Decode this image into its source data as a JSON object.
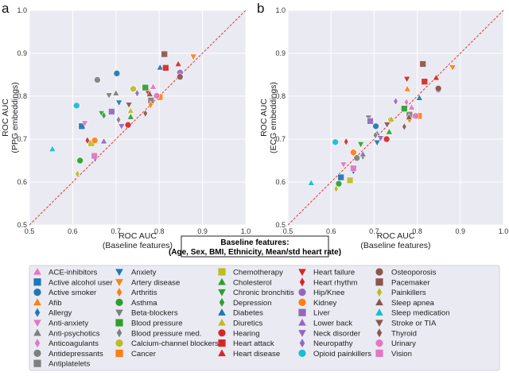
{
  "legend": [
    {
      "label": "ACE-inhibitors",
      "color": "#e377c2",
      "marker": "triangle-up"
    },
    {
      "label": "Active alcohol user",
      "color": "#1f77b4",
      "marker": "square"
    },
    {
      "label": "Active smoker",
      "color": "#1f77b4",
      "marker": "circle"
    },
    {
      "label": "Afib",
      "color": "#ff7f0e",
      "marker": "triangle-up"
    },
    {
      "label": "Allergy",
      "color": "#1f77b4",
      "marker": "diamond"
    },
    {
      "label": "Anti-anxiety",
      "color": "#e377c2",
      "marker": "triangle-down"
    },
    {
      "label": "Anti-psychotics",
      "color": "#7f7f7f",
      "marker": "triangle-up"
    },
    {
      "label": "Anticoagulants",
      "color": "#e377c2",
      "marker": "diamond"
    },
    {
      "label": "Antidepressants",
      "color": "#7f7f7f",
      "marker": "circle"
    },
    {
      "label": "Antiplatelets",
      "color": "#7f7f7f",
      "marker": "square"
    },
    {
      "label": "Anxiety",
      "color": "#1f77b4",
      "marker": "triangle-down"
    },
    {
      "label": "Artery disease",
      "color": "#ff7f0e",
      "marker": "triangle-down"
    },
    {
      "label": "Arthritis",
      "color": "#ff7f0e",
      "marker": "diamond"
    },
    {
      "label": "Asthma",
      "color": "#2ca02c",
      "marker": "circle"
    },
    {
      "label": "Beta-blockers",
      "color": "#7f7f7f",
      "marker": "triangle-down"
    },
    {
      "label": "Blood pressure",
      "color": "#2ca02c",
      "marker": "square"
    },
    {
      "label": "Blood pressure med.",
      "color": "#7f7f7f",
      "marker": "diamond"
    },
    {
      "label": "Calcium-channel blockers",
      "color": "#bcbd22",
      "marker": "circle"
    },
    {
      "label": "Cancer",
      "color": "#ff7f0e",
      "marker": "square"
    },
    {
      "label": "Chemotherapy",
      "color": "#bcbd22",
      "marker": "square"
    },
    {
      "label": "Cholesterol",
      "color": "#2ca02c",
      "marker": "triangle-up"
    },
    {
      "label": "Chronic bronchitis",
      "color": "#2ca02c",
      "marker": "triangle-down"
    },
    {
      "label": "Depression",
      "color": "#2ca02c",
      "marker": "diamond"
    },
    {
      "label": "Diabetes",
      "color": "#1f77b4",
      "marker": "triangle-up"
    },
    {
      "label": "Diuretics",
      "color": "#bcbd22",
      "marker": "triangle-up"
    },
    {
      "label": "Hearing",
      "color": "#d62728",
      "marker": "circle"
    },
    {
      "label": "Heart attack",
      "color": "#d62728",
      "marker": "square"
    },
    {
      "label": "Heart disease",
      "color": "#d62728",
      "marker": "triangle-up"
    },
    {
      "label": "Heart failure",
      "color": "#d62728",
      "marker": "triangle-down"
    },
    {
      "label": "Heart rhythm",
      "color": "#d62728",
      "marker": "diamond"
    },
    {
      "label": "Hip/Knee",
      "color": "#9467bd",
      "marker": "circle"
    },
    {
      "label": "Kidney",
      "color": "#ff7f0e",
      "marker": "circle"
    },
    {
      "label": "Liver",
      "color": "#9467bd",
      "marker": "square"
    },
    {
      "label": "Lower back",
      "color": "#9467bd",
      "marker": "triangle-up"
    },
    {
      "label": "Neck disorder",
      "color": "#9467bd",
      "marker": "triangle-down"
    },
    {
      "label": "Neuropathy",
      "color": "#9467bd",
      "marker": "diamond"
    },
    {
      "label": "Opioid painkillers",
      "color": "#17becf",
      "marker": "circle"
    },
    {
      "label": "Osteoporosis",
      "color": "#8c564b",
      "marker": "circle"
    },
    {
      "label": "Pacemaker",
      "color": "#8c564b",
      "marker": "square"
    },
    {
      "label": "Painkillers",
      "color": "#bcbd22",
      "marker": "diamond"
    },
    {
      "label": "Sleep apnea",
      "color": "#8c564b",
      "marker": "triangle-up"
    },
    {
      "label": "Sleep medication",
      "color": "#17becf",
      "marker": "triangle-up"
    },
    {
      "label": "Stroke or TIA",
      "color": "#8c564b",
      "marker": "triangle-down"
    },
    {
      "label": "Thyroid",
      "color": "#8c564b",
      "marker": "diamond"
    },
    {
      "label": "Urinary",
      "color": "#e377c2",
      "marker": "circle"
    },
    {
      "label": "Vision",
      "color": "#e377c2",
      "marker": "square"
    }
  ],
  "baseline_box": {
    "line1": "Baseline features:",
    "line2": "(Age, Sex, BMI, Ethnicity, Mean/std heart rate)"
  },
  "chart_data": [
    {
      "panel": "a",
      "type": "scatter",
      "xlabel": [
        "ROC AUC",
        "(Baseline features)"
      ],
      "ylabel": [
        "ROC AUC",
        "(PPG embeddings)"
      ],
      "xlim": [
        0.5,
        1.0
      ],
      "ylim": [
        0.5,
        1.0
      ],
      "xticks": [
        "0.5",
        "0.6",
        "0.7",
        "0.8",
        "0.9",
        "1.0"
      ],
      "yticks": [
        "0.5",
        "0.6",
        "0.7",
        "0.8",
        "0.9",
        "1.0"
      ],
      "grid": true,
      "diagonal": {
        "style": "dashed",
        "color": "#e8302a"
      },
      "points": [
        [
          0.786,
          0.822
        ],
        [
          0.621,
          0.73
        ],
        [
          0.702,
          0.853
        ],
        [
          0.781,
          0.785
        ],
        [
          0.652,
          0.655
        ],
        [
          0.628,
          0.737
        ],
        [
          0.7,
          0.807
        ],
        [
          0.775,
          0.812
        ],
        [
          0.657,
          0.838
        ],
        [
          0.781,
          0.79
        ],
        [
          0.707,
          0.785
        ],
        [
          0.879,
          0.892
        ],
        [
          0.78,
          0.78
        ],
        [
          0.617,
          0.65
        ],
        [
          0.684,
          0.802
        ],
        [
          0.768,
          0.82
        ],
        [
          0.706,
          0.745
        ],
        [
          0.74,
          0.817
        ],
        [
          0.801,
          0.798
        ],
        [
          0.643,
          0.69
        ],
        [
          0.734,
          0.752
        ],
        [
          0.667,
          0.76
        ],
        [
          0.672,
          0.755
        ],
        [
          0.802,
          0.867
        ],
        [
          0.734,
          0.766
        ],
        [
          0.728,
          0.733
        ],
        [
          0.815,
          0.866
        ],
        [
          0.844,
          0.875
        ],
        [
          0.775,
          0.807
        ],
        [
          0.634,
          0.697
        ],
        [
          0.848,
          0.855
        ],
        [
          0.651,
          0.697
        ],
        [
          0.69,
          0.764
        ],
        [
          0.672,
          0.695
        ],
        [
          0.713,
          0.73
        ],
        [
          0.749,
          0.807
        ],
        [
          0.609,
          0.778
        ],
        [
          0.848,
          0.845
        ],
        [
          0.812,
          0.898
        ],
        [
          0.611,
          0.619
        ],
        [
          0.778,
          0.805
        ],
        [
          0.553,
          0.677
        ],
        [
          0.73,
          0.78
        ],
        [
          0.768,
          0.76
        ],
        [
          0.794,
          0.801
        ],
        [
          0.65,
          0.661
        ]
      ]
    },
    {
      "panel": "b",
      "type": "scatter",
      "xlabel": [
        "ROC AUC",
        "(Baseline features)"
      ],
      "ylabel": [
        "ROC AUC",
        "(ECG embeddings)"
      ],
      "xlim": [
        0.5,
        1.0
      ],
      "ylim": [
        0.5,
        1.0
      ],
      "xticks": [
        "0.5",
        "0.6",
        "0.7",
        "0.8",
        "0.9",
        "1.0"
      ],
      "yticks": [
        "0.5",
        "0.6",
        "0.7",
        "0.8",
        "0.9",
        "1.0"
      ],
      "grid": true,
      "diagonal": {
        "style": "dashed",
        "color": "#e8302a"
      },
      "points": [
        [
          0.787,
          0.774
        ],
        [
          0.623,
          0.611
        ],
        [
          0.704,
          0.73
        ],
        [
          0.777,
          0.817
        ],
        [
          0.652,
          0.626
        ],
        [
          0.629,
          0.641
        ],
        [
          0.707,
          0.713
        ],
        [
          0.775,
          0.786
        ],
        [
          0.66,
          0.656
        ],
        [
          0.782,
          0.757
        ],
        [
          0.707,
          0.692
        ],
        [
          0.882,
          0.867
        ],
        [
          0.782,
          0.745
        ],
        [
          0.618,
          0.596
        ],
        [
          0.687,
          0.75
        ],
        [
          0.77,
          0.771
        ],
        [
          0.703,
          0.709
        ],
        [
          0.739,
          0.745
        ],
        [
          0.804,
          0.754
        ],
        [
          0.644,
          0.604
        ],
        [
          0.735,
          0.717
        ],
        [
          0.669,
          0.688
        ],
        [
          0.674,
          0.66
        ],
        [
          0.805,
          0.796
        ],
        [
          0.74,
          0.746
        ],
        [
          0.729,
          0.7
        ],
        [
          0.817,
          0.834
        ],
        [
          0.844,
          0.843
        ],
        [
          0.776,
          0.84
        ],
        [
          0.635,
          0.694
        ],
        [
          0.849,
          0.815
        ],
        [
          0.652,
          0.669
        ],
        [
          0.691,
          0.742
        ],
        [
          0.674,
          0.665
        ],
        [
          0.715,
          0.702
        ],
        [
          0.75,
          0.788
        ],
        [
          0.61,
          0.693
        ],
        [
          0.849,
          0.818
        ],
        [
          0.813,
          0.875
        ],
        [
          0.612,
          0.584
        ],
        [
          0.781,
          0.751
        ],
        [
          0.554,
          0.598
        ],
        [
          0.73,
          0.734
        ],
        [
          0.77,
          0.729
        ],
        [
          0.796,
          0.754
        ],
        [
          0.652,
          0.632
        ]
      ]
    }
  ]
}
